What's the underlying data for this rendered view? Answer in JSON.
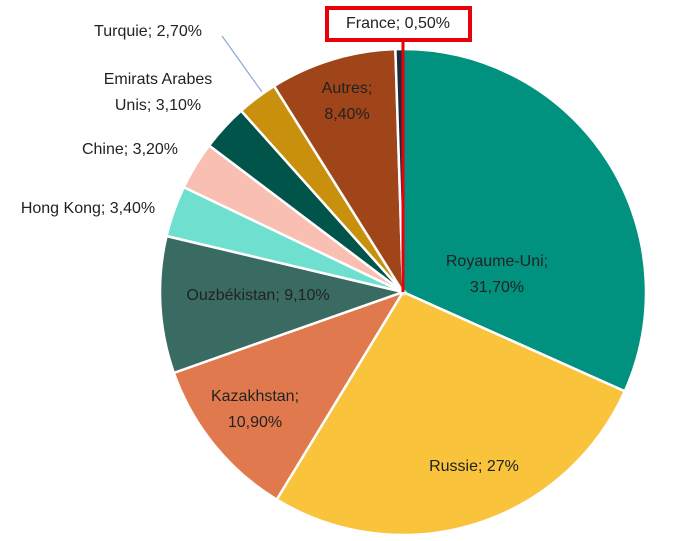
{
  "chart_data": {
    "type": "pie",
    "values": [
      31.7,
      27,
      10.9,
      9.1,
      3.4,
      3.2,
      3.1,
      2.7,
      8.4,
      0.5
    ],
    "value_labels": [
      "Royaume-Uni;\n31,70%",
      "Russie; 27%",
      "Kazakhstan;\n10,90%",
      "Ouzbékistan; 9,10%",
      "Hong Kong; 3,40%",
      "Chine; 3,20%",
      "Emirats Arabes\nUnis; 3,10%",
      "Turquie; 2,70%",
      "Autres;\n8,40%",
      "France; 0,50%"
    ],
    "colors": [
      "#00917f",
      "#f9c33c",
      "#e07a4e",
      "#3a6b62",
      "#6fdfcf",
      "#f8bfb2",
      "#00544a",
      "#c8900c",
      "#a0441a",
      "#1a2b3a"
    ],
    "start_angle": 0,
    "direction": "clockwise"
  }
}
